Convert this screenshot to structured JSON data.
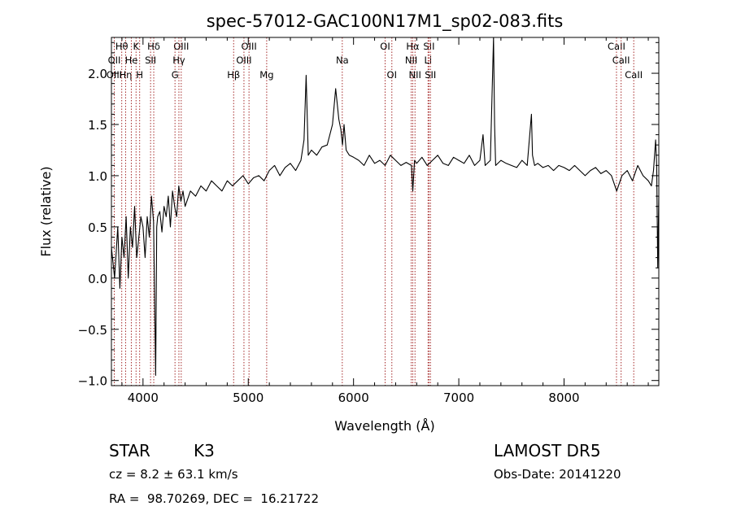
{
  "chart_data": {
    "type": "line",
    "title": "spec-57012-GAC100N17M1_sp02-083.fits",
    "xlabel": "Wavelength (Å)",
    "ylabel": "Flux (relative)",
    "xlim": [
      3700,
      8900
    ],
    "ylim": [
      -1.05,
      2.35
    ],
    "xticks": [
      4000,
      5000,
      6000,
      7000,
      8000
    ],
    "xtick_labels": [
      "4000",
      "5000",
      "6000",
      "7000",
      "8000"
    ],
    "yticks": [
      -1.0,
      -0.5,
      0.0,
      0.5,
      1.0,
      1.5,
      2.0
    ],
    "ytick_labels": [
      "−1.0",
      "−0.5",
      "0.0",
      "0.5",
      "1.0",
      "1.5",
      "2.0"
    ],
    "grid": false,
    "line_color": "#000000",
    "marker_color": "#a52a2a",
    "spectrum": {
      "name": "",
      "x": [
        3700,
        3730,
        3760,
        3780,
        3800,
        3820,
        3840,
        3860,
        3880,
        3900,
        3920,
        3940,
        3960,
        3980,
        4000,
        4020,
        4040,
        4060,
        4080,
        4100,
        4120,
        4130,
        4140,
        4160,
        4180,
        4200,
        4220,
        4240,
        4260,
        4280,
        4300,
        4320,
        4340,
        4360,
        4380,
        4400,
        4450,
        4500,
        4550,
        4600,
        4650,
        4700,
        4750,
        4800,
        4850,
        4900,
        4950,
        5000,
        5050,
        5100,
        5150,
        5200,
        5250,
        5300,
        5350,
        5400,
        5450,
        5500,
        5530,
        5550,
        5570,
        5600,
        5650,
        5700,
        5750,
        5800,
        5830,
        5860,
        5880,
        5895,
        5910,
        5930,
        5960,
        6000,
        6050,
        6100,
        6150,
        6200,
        6250,
        6300,
        6350,
        6400,
        6450,
        6500,
        6550,
        6563,
        6580,
        6600,
        6650,
        6700,
        6750,
        6800,
        6850,
        6900,
        6950,
        7000,
        7050,
        7100,
        7150,
        7200,
        7230,
        7250,
        7300,
        7330,
        7340,
        7350,
        7400,
        7450,
        7500,
        7550,
        7600,
        7650,
        7690,
        7700,
        7720,
        7750,
        7800,
        7850,
        7900,
        7950,
        8000,
        8050,
        8100,
        8150,
        8200,
        8250,
        8300,
        8350,
        8400,
        8450,
        8500,
        8550,
        8600,
        8650,
        8700,
        8750,
        8800,
        8830,
        8850,
        8870,
        8880,
        8890,
        8900
      ],
      "y": [
        0.3,
        0.0,
        0.5,
        -0.1,
        0.4,
        0.2,
        0.6,
        0.0,
        0.5,
        0.3,
        0.7,
        0.2,
        0.4,
        0.6,
        0.5,
        0.2,
        0.6,
        0.4,
        0.8,
        0.55,
        -0.95,
        0.5,
        0.6,
        0.65,
        0.45,
        0.7,
        0.6,
        0.8,
        0.5,
        0.85,
        0.7,
        0.6,
        0.9,
        0.75,
        0.85,
        0.7,
        0.85,
        0.8,
        0.9,
        0.85,
        0.95,
        0.9,
        0.85,
        0.95,
        0.9,
        0.95,
        1.0,
        0.92,
        0.98,
        1.0,
        0.95,
        1.05,
        1.1,
        1.0,
        1.08,
        1.12,
        1.05,
        1.15,
        1.35,
        1.98,
        1.2,
        1.25,
        1.2,
        1.28,
        1.3,
        1.5,
        1.85,
        1.55,
        1.45,
        1.3,
        1.5,
        1.25,
        1.2,
        1.18,
        1.15,
        1.1,
        1.2,
        1.12,
        1.15,
        1.1,
        1.2,
        1.15,
        1.1,
        1.13,
        1.1,
        0.85,
        1.15,
        1.12,
        1.18,
        1.1,
        1.15,
        1.2,
        1.12,
        1.1,
        1.18,
        1.15,
        1.12,
        1.2,
        1.1,
        1.15,
        1.4,
        1.1,
        1.15,
        2.35,
        1.5,
        1.1,
        1.15,
        1.12,
        1.1,
        1.08,
        1.15,
        1.1,
        1.6,
        1.2,
        1.1,
        1.12,
        1.08,
        1.1,
        1.05,
        1.1,
        1.08,
        1.05,
        1.1,
        1.05,
        1.0,
        1.05,
        1.08,
        1.02,
        1.05,
        1.0,
        0.85,
        1.0,
        1.05,
        0.95,
        1.1,
        1.0,
        0.95,
        0.9,
        1.05,
        1.35,
        1.1,
        0.1,
        0.8
      ]
    },
    "lines": [
      {
        "label": "Hθ",
        "x": 3798,
        "row": 1
      },
      {
        "label": "OII",
        "x": 3727,
        "row": 2
      },
      {
        "label": "OIII",
        "x": 3727,
        "row": 3
      },
      {
        "label": "Hη",
        "x": 3835,
        "row": 3
      },
      {
        "label": "K",
        "x": 3934,
        "row": 1
      },
      {
        "label": "He",
        "x": 3889,
        "row": 2
      },
      {
        "label": "H",
        "x": 3968,
        "row": 3
      },
      {
        "label": "Hδ",
        "x": 4102,
        "row": 1
      },
      {
        "label": "SII",
        "x": 4072,
        "row": 2
      },
      {
        "label": "OIII",
        "x": 4363,
        "row": 1
      },
      {
        "label": "Hγ",
        "x": 4341,
        "row": 2
      },
      {
        "label": "G",
        "x": 4304,
        "row": 3
      },
      {
        "label": "Hβ",
        "x": 4861,
        "row": 3
      },
      {
        "label": "OIII",
        "x": 5007,
        "row": 1
      },
      {
        "label": "OIII",
        "x": 4959,
        "row": 2
      },
      {
        "label": "Mg",
        "x": 5175,
        "row": 3
      },
      {
        "label": "Na",
        "x": 5893,
        "row": 2
      },
      {
        "label": "OI",
        "x": 6300,
        "row": 1
      },
      {
        "label": "OI",
        "x": 6364,
        "row": 3
      },
      {
        "label": "Hα",
        "x": 6563,
        "row": 1
      },
      {
        "label": "NII",
        "x": 6548,
        "row": 2
      },
      {
        "label": "NII",
        "x": 6584,
        "row": 3
      },
      {
        "label": "SII",
        "x": 6717,
        "row": 1
      },
      {
        "label": "Li",
        "x": 6708,
        "row": 2
      },
      {
        "label": "SII",
        "x": 6731,
        "row": 3
      },
      {
        "label": "CaII",
        "x": 8498,
        "row": 1
      },
      {
        "label": "CaII",
        "x": 8542,
        "row": 2
      },
      {
        "label": "CaII",
        "x": 8662,
        "row": 3
      }
    ]
  },
  "footer": {
    "class_label": "STAR",
    "subclass": "K3",
    "survey": "LAMOST DR5",
    "cz": "cz = 8.2 ± 63.1 km/s",
    "obs_date": "Obs-Date: 20141220",
    "coords": "RA =  98.70269, DEC =  16.21722"
  }
}
